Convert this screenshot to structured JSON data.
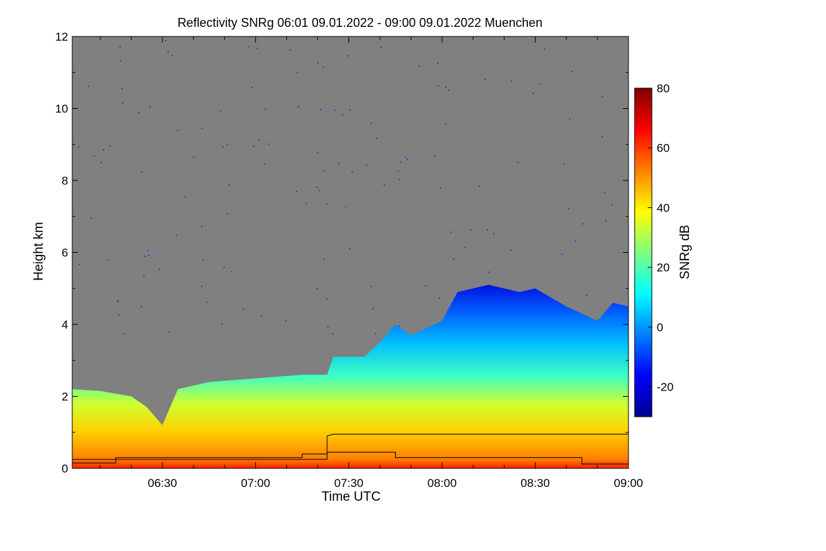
{
  "chart_data": {
    "type": "heatmap",
    "title": "Reflectivity SNRg   06:01 09.01.2022 - 09:00 09.01.2022 Muenchen",
    "xlabel": "Time UTC",
    "ylabel": "Height km",
    "colorbar_label": "SNRg dB",
    "x_range": [
      "06:01",
      "09:00"
    ],
    "x_ticks": [
      "06:30",
      "07:00",
      "07:30",
      "08:00",
      "08:30",
      "09:00"
    ],
    "ylim": [
      0,
      12
    ],
    "y_ticks": [
      "0",
      "2",
      "4",
      "6",
      "8",
      "10",
      "12"
    ],
    "colorbar_range": [
      -30,
      80
    ],
    "colorbar_ticks": [
      "-20",
      "0",
      "20",
      "40",
      "60",
      "80"
    ],
    "background_color": "#808080",
    "colormap": [
      "#00008f",
      "#0000ff",
      "#007fff",
      "#00ffff",
      "#7fff7f",
      "#ffff00",
      "#ff7f00",
      "#ff0000",
      "#7f0000"
    ],
    "grid": false,
    "cloud_top_km": [
      {
        "t": "06:01",
        "h": 2.2
      },
      {
        "t": "06:10",
        "h": 2.15
      },
      {
        "t": "06:20",
        "h": 2.0
      },
      {
        "t": "06:25",
        "h": 1.7
      },
      {
        "t": "06:30",
        "h": 1.2
      },
      {
        "t": "06:35",
        "h": 2.2
      },
      {
        "t": "06:45",
        "h": 2.4
      },
      {
        "t": "07:00",
        "h": 2.5
      },
      {
        "t": "07:15",
        "h": 2.6
      },
      {
        "t": "07:23",
        "h": 2.6
      },
      {
        "t": "07:25",
        "h": 3.1
      },
      {
        "t": "07:35",
        "h": 3.1
      },
      {
        "t": "07:40",
        "h": 3.5
      },
      {
        "t": "07:45",
        "h": 4.0
      },
      {
        "t": "07:50",
        "h": 3.7
      },
      {
        "t": "07:55",
        "h": 3.9
      },
      {
        "t": "08:00",
        "h": 4.1
      },
      {
        "t": "08:05",
        "h": 4.9
      },
      {
        "t": "08:15",
        "h": 5.1
      },
      {
        "t": "08:25",
        "h": 4.9
      },
      {
        "t": "08:30",
        "h": 5.0
      },
      {
        "t": "08:40",
        "h": 4.5
      },
      {
        "t": "08:50",
        "h": 4.1
      },
      {
        "t": "08:55",
        "h": 4.6
      },
      {
        "t": "09:00",
        "h": 4.5
      }
    ],
    "lines": [
      {
        "points": [
          {
            "t": "06:01",
            "h": 0.15
          },
          {
            "t": "06:15",
            "h": 0.15
          },
          {
            "t": "06:15",
            "h": 0.3
          },
          {
            "t": "07:15",
            "h": 0.3
          },
          {
            "t": "07:15",
            "h": 0.4
          },
          {
            "t": "07:23",
            "h": 0.4
          },
          {
            "t": "07:23",
            "h": 0.9
          },
          {
            "t": "07:25",
            "h": 0.95
          },
          {
            "t": "09:00",
            "h": 0.95
          }
        ]
      },
      {
        "points": [
          {
            "t": "06:01",
            "h": 0.25
          },
          {
            "t": "07:23",
            "h": 0.25
          },
          {
            "t": "07:23",
            "h": 0.45
          },
          {
            "t": "07:45",
            "h": 0.45
          },
          {
            "t": "07:45",
            "h": 0.3
          },
          {
            "t": "08:45",
            "h": 0.3
          },
          {
            "t": "08:45",
            "h": 0.12
          },
          {
            "t": "09:00",
            "h": 0.12
          }
        ]
      }
    ]
  }
}
